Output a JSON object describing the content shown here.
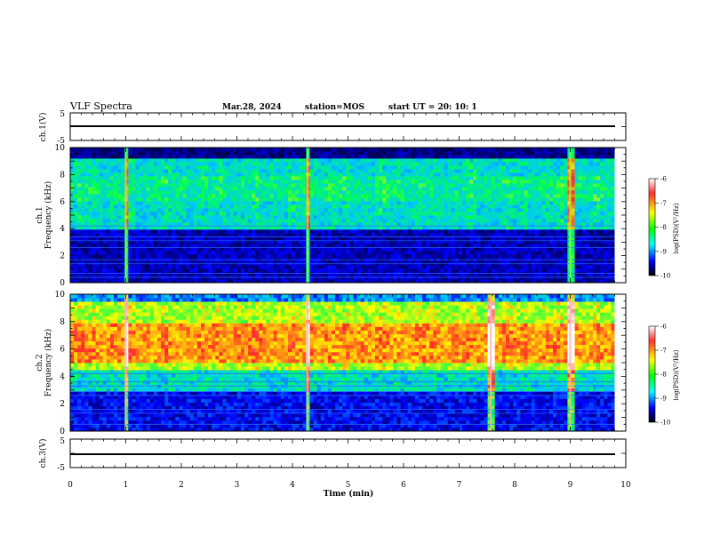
{
  "header": {
    "title": "VLF Spectra",
    "date": "Mar.28, 2024",
    "station": "station=MOS",
    "start": "start  UT =   20: 10: 1"
  },
  "panels": {
    "ch1v": {
      "ylabel": "ch.1(V)",
      "ticks": [
        "5",
        "-5"
      ]
    },
    "ch1": {
      "ylabel": "ch.1\nFrequency (kHz)",
      "ylabel_top": "ch.1",
      "ylabel_bottom": "Frequency (kHz)",
      "yticks": [
        "0",
        "2",
        "4",
        "6",
        "8",
        "10"
      ]
    },
    "ch2": {
      "ylabel_top": "ch.2",
      "ylabel_bottom": "Frequency (kHz)",
      "yticks": [
        "0",
        "2",
        "4",
        "6",
        "8",
        "10"
      ]
    },
    "ch3v": {
      "ylabel": "ch.3(V)",
      "ticks": [
        "5",
        "-5"
      ]
    }
  },
  "xaxis": {
    "label": "Time  (min)",
    "ticks": [
      "0",
      "1",
      "2",
      "3",
      "4",
      "5",
      "6",
      "7",
      "8",
      "9",
      "10"
    ]
  },
  "colorbar": {
    "label": "log(PSD)(V²/Hz)",
    "ticks": [
      "-6",
      "-7",
      "-8",
      "-9",
      "-10"
    ],
    "colors": [
      "#ffffff",
      "#ff0000",
      "#ffff00",
      "#00ff00",
      "#00ffff",
      "#0000ff",
      "#000000"
    ]
  },
  "chart_data": [
    {
      "type": "line",
      "title": "ch.1(V)",
      "xlabel": "Time  (min)",
      "ylabel": "ch.1(V)",
      "xlim": [
        0,
        10
      ],
      "ylim": [
        -5,
        5
      ],
      "series": [
        {
          "name": "",
          "x": [
            0,
            9.8
          ],
          "y": [
            0,
            0
          ]
        }
      ]
    },
    {
      "type": "heatmap",
      "title": "ch.1",
      "xlabel": "Time  (min)",
      "ylabel": "Frequency (kHz)",
      "xlim": [
        0,
        10
      ],
      "ylim": [
        0,
        10
      ],
      "data_extent_x": [
        0,
        9.8
      ],
      "color_scale": "log(PSD)(V²/Hz)",
      "clim": [
        -10,
        -6
      ],
      "strong_bursts_min": [
        1.0,
        4.27,
        9.0
      ],
      "band_top_khz": 9.0
    },
    {
      "type": "heatmap",
      "title": "ch.2",
      "xlabel": "Time  (min)",
      "ylabel": "Frequency (kHz)",
      "xlim": [
        0,
        10
      ],
      "ylim": [
        0,
        10
      ],
      "data_extent_x": [
        0,
        9.8
      ],
      "color_scale": "log(PSD)(V²/Hz)",
      "clim": [
        -10,
        -6
      ],
      "strong_bursts_min": [
        1.0,
        4.27,
        7.57,
        9.0
      ],
      "peak_band_khz": [
        5,
        8
      ]
    },
    {
      "type": "line",
      "title": "ch.3(V)",
      "xlabel": "Time  (min)",
      "ylabel": "ch.3(V)",
      "xlim": [
        0,
        10
      ],
      "ylim": [
        -5,
        5
      ],
      "series": [
        {
          "name": "",
          "x": [
            0,
            9.8
          ],
          "y": [
            0,
            0
          ]
        }
      ]
    }
  ]
}
